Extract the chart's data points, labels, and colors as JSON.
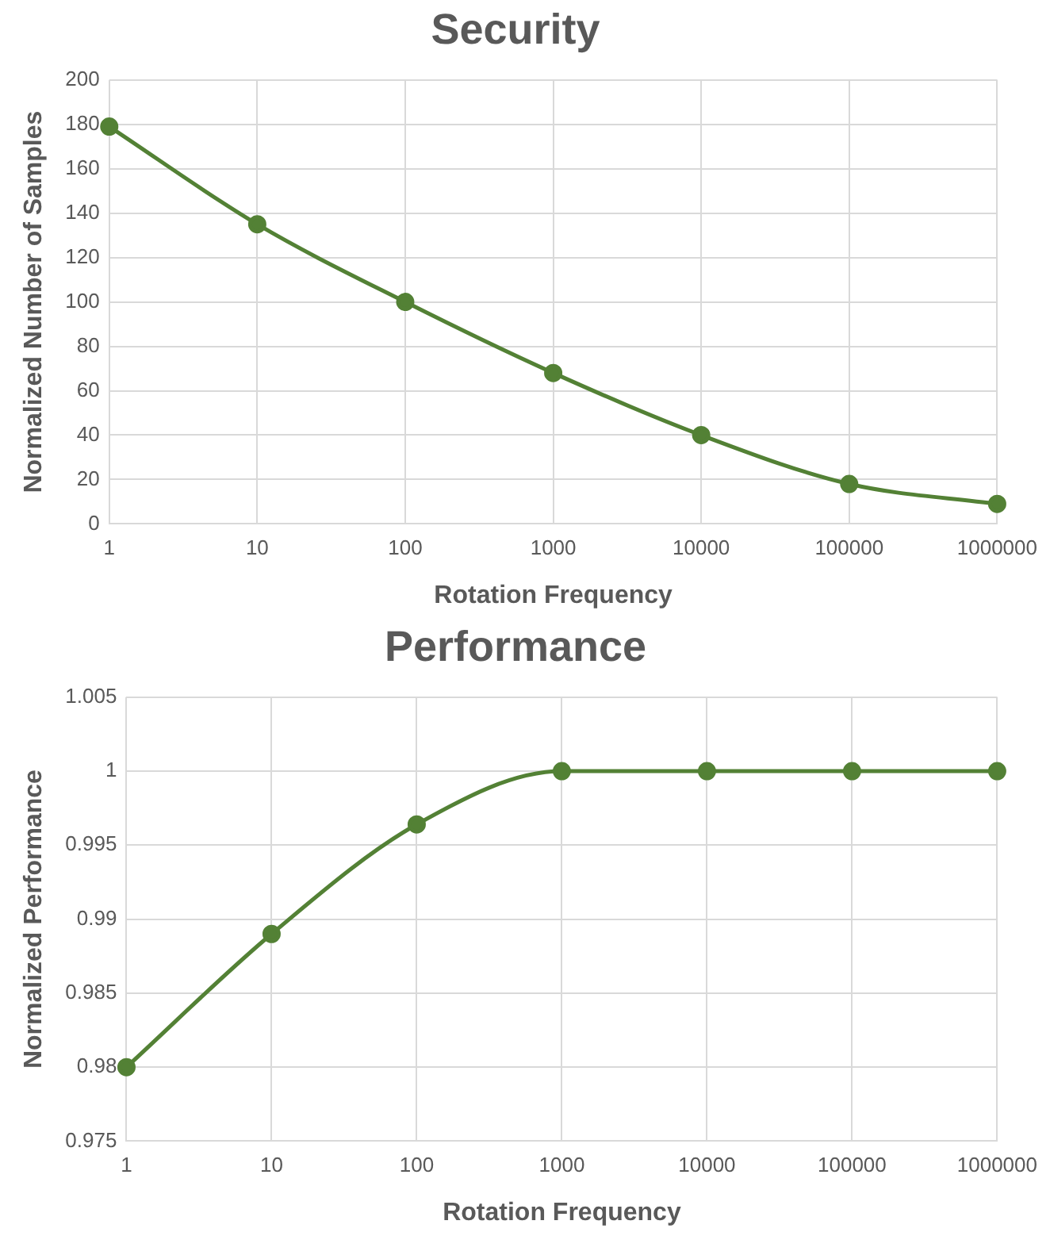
{
  "chart_data": [
    {
      "type": "line",
      "title": "Security",
      "xlabel": "Rotation Frequency",
      "ylabel": "Normalized Number of Samples",
      "categories": [
        "1",
        "10",
        "100",
        "1000",
        "10000",
        "100000",
        "1000000"
      ],
      "series": [
        {
          "color": "#538135",
          "values": [
            179,
            135,
            100,
            68,
            40,
            18,
            9
          ]
        }
      ],
      "ylim": [
        0,
        200
      ],
      "yticks": [
        0,
        20,
        40,
        60,
        80,
        100,
        120,
        140,
        160,
        180,
        200
      ],
      "grid": true,
      "marker": "circle",
      "legend": false
    },
    {
      "type": "line",
      "title": "Performance",
      "xlabel": "Rotation Frequency",
      "ylabel": "Normalized Performance",
      "categories": [
        "1",
        "10",
        "100",
        "1000",
        "10000",
        "100000",
        "1000000"
      ],
      "series": [
        {
          "color": "#538135",
          "values": [
            0.98,
            0.989,
            0.9964,
            1,
            1,
            1,
            1
          ]
        }
      ],
      "ylim": [
        0.975,
        1.005
      ],
      "yticks": [
        0.975,
        0.98,
        0.985,
        0.99,
        0.995,
        1,
        1.005
      ],
      "grid": true,
      "marker": "circle",
      "legend": false
    }
  ]
}
